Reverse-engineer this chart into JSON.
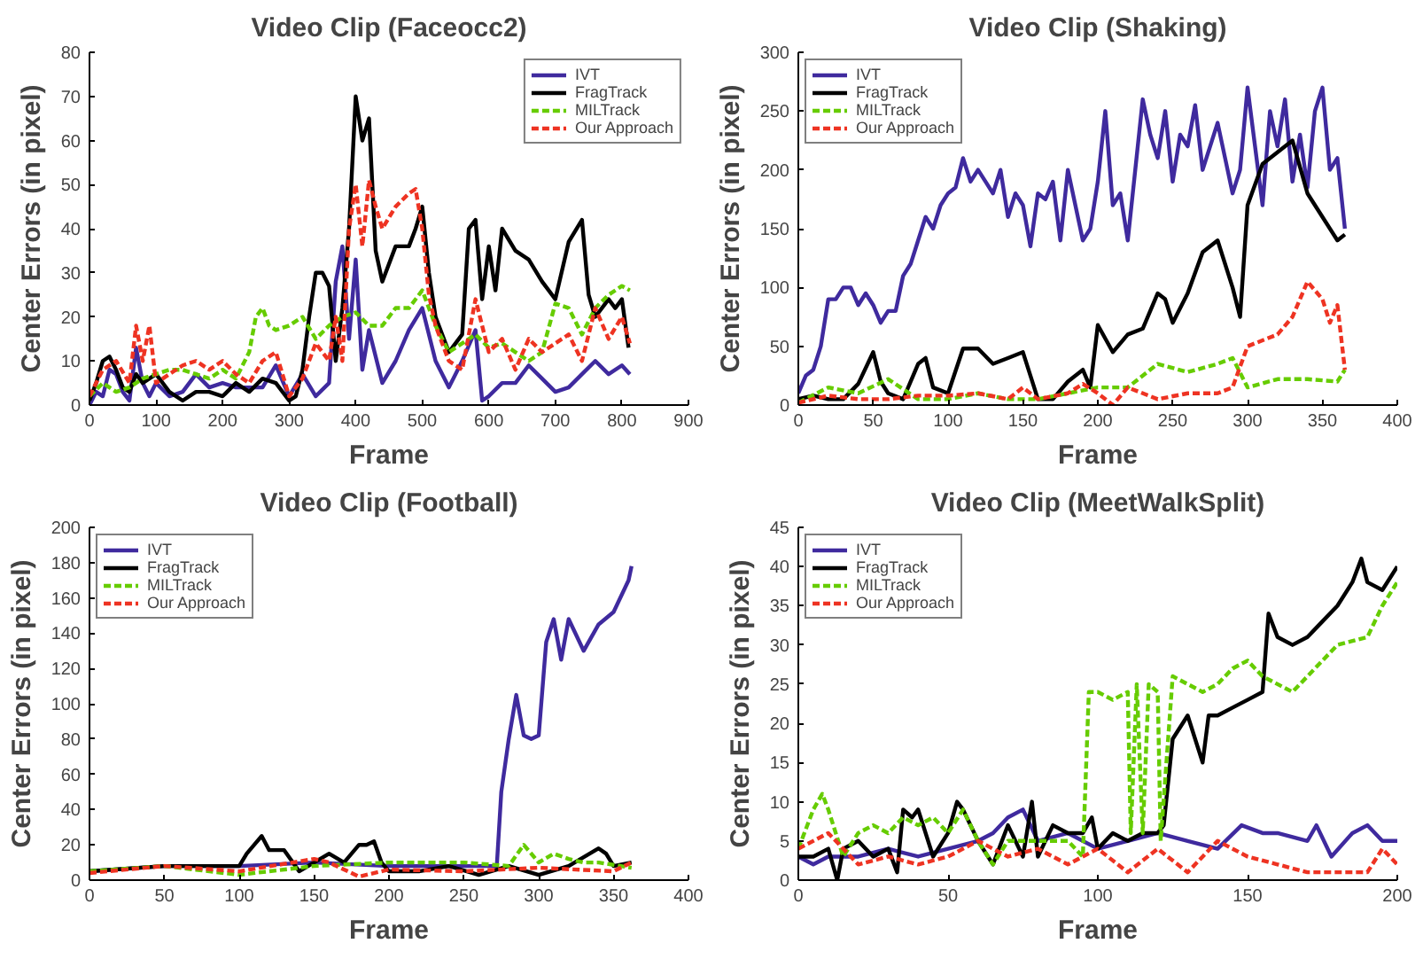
{
  "chart_data": [
    {
      "type": "line",
      "title": "Video Clip (Faceocc2)",
      "xlabel": "Frame",
      "ylabel": "Center Errors (in pixel)",
      "xlim": [
        0,
        900
      ],
      "xticks": [
        0,
        100,
        200,
        300,
        400,
        500,
        600,
        700,
        800,
        900
      ],
      "ylim": [
        0,
        80
      ],
      "yticks": [
        0,
        10,
        20,
        30,
        40,
        50,
        60,
        70,
        80
      ],
      "legend": "top right",
      "series": [
        {
          "name": "IVT",
          "color": "#3f2a9e",
          "line_style": "solid",
          "x": [
            0,
            10,
            20,
            30,
            40,
            50,
            60,
            70,
            80,
            90,
            100,
            120,
            140,
            160,
            180,
            200,
            220,
            240,
            260,
            280,
            300,
            320,
            340,
            360,
            370,
            380,
            390,
            400,
            410,
            420,
            440,
            460,
            480,
            500,
            520,
            540,
            560,
            580,
            590,
            600,
            620,
            640,
            660,
            680,
            700,
            720,
            740,
            760,
            780,
            800,
            812
          ],
          "values": [
            0,
            3,
            2,
            8,
            7,
            3,
            1,
            13,
            5,
            2,
            5,
            2,
            3,
            7,
            4,
            5,
            4,
            4,
            4,
            9,
            2,
            7,
            2,
            5,
            28,
            36,
            15,
            33,
            8,
            17,
            5,
            10,
            17,
            22,
            10,
            4,
            10,
            17,
            1,
            2,
            5,
            5,
            9,
            6,
            3,
            4,
            7,
            10,
            7,
            9,
            7
          ]
        },
        {
          "name": "FragTrack",
          "color": "#000000",
          "line_style": "solid",
          "x": [
            0,
            10,
            20,
            30,
            40,
            50,
            60,
            70,
            80,
            100,
            120,
            140,
            160,
            180,
            200,
            220,
            240,
            260,
            280,
            300,
            310,
            320,
            330,
            340,
            350,
            360,
            370,
            380,
            390,
            400,
            410,
            420,
            430,
            440,
            460,
            480,
            490,
            500,
            510,
            520,
            540,
            560,
            570,
            580,
            590,
            600,
            610,
            620,
            640,
            660,
            680,
            700,
            720,
            740,
            750,
            760,
            780,
            790,
            800,
            810
          ],
          "values": [
            1,
            5,
            10,
            11,
            8,
            4,
            3,
            7,
            5,
            7,
            3,
            1,
            3,
            3,
            2,
            5,
            3,
            6,
            5,
            1,
            2,
            8,
            20,
            30,
            30,
            27,
            10,
            22,
            40,
            70,
            60,
            65,
            35,
            28,
            36,
            36,
            40,
            45,
            30,
            20,
            12,
            16,
            40,
            42,
            24,
            36,
            26,
            40,
            35,
            33,
            28,
            24,
            37,
            42,
            25,
            20,
            24,
            22,
            24,
            13
          ]
        },
        {
          "name": "MILTrack",
          "color": "#66cc00",
          "line_style": "dashed",
          "x": [
            0,
            20,
            40,
            60,
            80,
            100,
            120,
            140,
            160,
            180,
            200,
            220,
            240,
            250,
            260,
            270,
            280,
            300,
            320,
            340,
            360,
            380,
            400,
            420,
            440,
            460,
            480,
            500,
            520,
            540,
            560,
            580,
            600,
            620,
            640,
            660,
            680,
            700,
            720,
            740,
            760,
            780,
            800,
            812
          ],
          "values": [
            2,
            5,
            3,
            4,
            6,
            7,
            8,
            8,
            7,
            6,
            8,
            6,
            12,
            20,
            22,
            18,
            17,
            18,
            20,
            15,
            18,
            20,
            21,
            18,
            18,
            22,
            22,
            26,
            18,
            12,
            14,
            16,
            13,
            14,
            12,
            10,
            12,
            23,
            22,
            16,
            22,
            25,
            27,
            26
          ]
        },
        {
          "name": "Our Approach",
          "color": "#ee3322",
          "line_style": "dashed",
          "x": [
            0,
            20,
            40,
            60,
            70,
            80,
            90,
            100,
            120,
            140,
            160,
            180,
            200,
            220,
            240,
            260,
            280,
            300,
            320,
            340,
            360,
            370,
            380,
            390,
            400,
            410,
            420,
            430,
            440,
            460,
            480,
            490,
            500,
            510,
            520,
            540,
            560,
            580,
            600,
            620,
            640,
            660,
            680,
            700,
            720,
            740,
            760,
            780,
            800,
            812
          ],
          "values": [
            2,
            8,
            10,
            5,
            18,
            10,
            18,
            5,
            7,
            9,
            10,
            8,
            10,
            7,
            5,
            10,
            12,
            2,
            6,
            14,
            10,
            20,
            10,
            40,
            50,
            36,
            51,
            45,
            40,
            45,
            48,
            49,
            40,
            25,
            18,
            10,
            8,
            24,
            12,
            15,
            8,
            15,
            12,
            14,
            16,
            10,
            22,
            15,
            20,
            14
          ]
        }
      ]
    },
    {
      "type": "line",
      "title": "Video Clip (Shaking)",
      "xlabel": "Frame",
      "ylabel": "Center Errors (in pixel)",
      "xlim": [
        0,
        400
      ],
      "xticks": [
        0,
        50,
        100,
        150,
        200,
        250,
        300,
        350,
        400
      ],
      "ylim": [
        0,
        300
      ],
      "yticks": [
        0,
        50,
        100,
        150,
        200,
        250,
        300
      ],
      "legend": "top left",
      "series": [
        {
          "name": "IVT",
          "color": "#3f2a9e",
          "line_style": "solid",
          "x": [
            0,
            5,
            10,
            15,
            20,
            25,
            30,
            35,
            40,
            45,
            50,
            55,
            60,
            65,
            70,
            75,
            80,
            85,
            90,
            95,
            100,
            105,
            110,
            115,
            120,
            125,
            130,
            135,
            140,
            145,
            150,
            155,
            160,
            165,
            170,
            175,
            180,
            185,
            190,
            195,
            200,
            205,
            210,
            215,
            220,
            225,
            230,
            235,
            240,
            245,
            250,
            255,
            260,
            265,
            270,
            275,
            280,
            285,
            290,
            295,
            300,
            305,
            310,
            315,
            320,
            325,
            330,
            335,
            340,
            345,
            350,
            355,
            360,
            365
          ],
          "values": [
            10,
            25,
            30,
            50,
            90,
            90,
            100,
            100,
            85,
            95,
            85,
            70,
            80,
            80,
            110,
            120,
            140,
            160,
            150,
            170,
            180,
            185,
            210,
            190,
            200,
            190,
            180,
            200,
            160,
            180,
            170,
            135,
            180,
            175,
            190,
            140,
            200,
            170,
            140,
            150,
            190,
            250,
            170,
            180,
            140,
            200,
            260,
            230,
            210,
            250,
            190,
            230,
            220,
            255,
            200,
            220,
            240,
            210,
            180,
            200,
            270,
            220,
            170,
            250,
            220,
            260,
            190,
            230,
            185,
            250,
            270,
            200,
            210,
            150
          ]
        },
        {
          "name": "FragTrack",
          "color": "#000000",
          "line_style": "solid",
          "x": [
            0,
            10,
            20,
            30,
            40,
            50,
            55,
            60,
            70,
            80,
            85,
            90,
            100,
            110,
            120,
            130,
            140,
            150,
            155,
            160,
            170,
            180,
            190,
            195,
            200,
            210,
            220,
            230,
            240,
            245,
            250,
            260,
            270,
            280,
            290,
            295,
            300,
            310,
            320,
            330,
            340,
            350,
            360,
            365
          ],
          "values": [
            5,
            8,
            5,
            5,
            18,
            45,
            20,
            10,
            5,
            35,
            40,
            15,
            10,
            48,
            48,
            35,
            40,
            45,
            25,
            5,
            5,
            20,
            30,
            15,
            68,
            45,
            60,
            65,
            95,
            90,
            70,
            95,
            130,
            140,
            100,
            75,
            170,
            205,
            215,
            225,
            180,
            160,
            140,
            145
          ]
        },
        {
          "name": "MILTrack",
          "color": "#66cc00",
          "line_style": "dashed",
          "x": [
            0,
            20,
            40,
            60,
            80,
            100,
            120,
            140,
            160,
            180,
            200,
            220,
            240,
            260,
            280,
            290,
            300,
            320,
            340,
            360,
            365
          ],
          "values": [
            2,
            15,
            10,
            22,
            5,
            5,
            10,
            5,
            5,
            10,
            15,
            15,
            35,
            28,
            35,
            40,
            15,
            22,
            22,
            20,
            30
          ]
        },
        {
          "name": "Our Approach",
          "color": "#ee3322",
          "line_style": "dashed",
          "x": [
            0,
            20,
            40,
            60,
            80,
            100,
            120,
            140,
            150,
            160,
            180,
            190,
            200,
            210,
            220,
            240,
            260,
            280,
            290,
            300,
            310,
            320,
            330,
            340,
            350,
            355,
            360,
            365
          ],
          "values": [
            2,
            8,
            5,
            5,
            8,
            8,
            10,
            5,
            15,
            5,
            10,
            18,
            10,
            0,
            15,
            5,
            10,
            10,
            15,
            50,
            55,
            60,
            75,
            105,
            90,
            70,
            85,
            30
          ]
        }
      ]
    },
    {
      "type": "line",
      "title": "Video Clip (Football)",
      "xlabel": "Frame",
      "ylabel": "Center Errors (in pixel)",
      "xlim": [
        0,
        400
      ],
      "xticks": [
        0,
        50,
        100,
        150,
        200,
        250,
        300,
        350,
        400
      ],
      "ylim": [
        0,
        200
      ],
      "yticks": [
        0,
        20,
        40,
        60,
        80,
        100,
        120,
        140,
        160,
        180,
        200
      ],
      "legend": "top left",
      "series": [
        {
          "name": "IVT",
          "color": "#3f2a9e",
          "line_style": "solid",
          "x": [
            0,
            50,
            100,
            150,
            200,
            250,
            270,
            272,
            275,
            280,
            285,
            290,
            295,
            300,
            305,
            310,
            315,
            320,
            330,
            340,
            350,
            360,
            362
          ],
          "values": [
            5,
            8,
            8,
            10,
            8,
            8,
            8,
            8,
            50,
            80,
            105,
            82,
            80,
            82,
            135,
            148,
            125,
            148,
            130,
            145,
            152,
            170,
            178
          ]
        },
        {
          "name": "FragTrack",
          "color": "#000000",
          "line_style": "solid",
          "x": [
            0,
            50,
            100,
            105,
            110,
            115,
            120,
            130,
            140,
            150,
            160,
            170,
            180,
            185,
            190,
            195,
            200,
            220,
            240,
            260,
            280,
            300,
            320,
            340,
            345,
            350,
            362
          ],
          "values": [
            5,
            8,
            8,
            15,
            20,
            25,
            17,
            17,
            5,
            10,
            15,
            10,
            20,
            20,
            22,
            10,
            5,
            5,
            8,
            3,
            8,
            3,
            8,
            18,
            15,
            8,
            10
          ]
        },
        {
          "name": "MILTrack",
          "color": "#66cc00",
          "line_style": "dashed",
          "x": [
            0,
            50,
            100,
            150,
            200,
            250,
            280,
            290,
            300,
            310,
            320,
            330,
            340,
            362
          ],
          "values": [
            5,
            8,
            3,
            8,
            10,
            10,
            8,
            20,
            10,
            15,
            12,
            10,
            10,
            7
          ]
        },
        {
          "name": "Our Approach",
          "color": "#ee3322",
          "line_style": "dashed",
          "x": [
            0,
            50,
            100,
            150,
            160,
            180,
            200,
            250,
            300,
            350,
            362
          ],
          "values": [
            4,
            8,
            5,
            12,
            10,
            2,
            6,
            5,
            7,
            5,
            10
          ]
        }
      ]
    },
    {
      "type": "line",
      "title": "Video Clip (MeetWalkSplit)",
      "xlabel": "Frame",
      "ylabel": "Center Errors (in pixel)",
      "xlim": [
        0,
        200
      ],
      "xticks": [
        0,
        50,
        100,
        150,
        200
      ],
      "ylim": [
        0,
        45
      ],
      "yticks": [
        0,
        5,
        10,
        15,
        20,
        25,
        30,
        35,
        40,
        45
      ],
      "legend": "top left",
      "series": [
        {
          "name": "IVT",
          "color": "#3f2a9e",
          "line_style": "solid",
          "x": [
            0,
            5,
            10,
            20,
            30,
            40,
            50,
            60,
            65,
            70,
            75,
            80,
            90,
            100,
            110,
            120,
            130,
            140,
            148,
            155,
            160,
            170,
            173,
            178,
            185,
            190,
            195,
            200
          ],
          "values": [
            3,
            2,
            3,
            3,
            4,
            3,
            4,
            5,
            6,
            8,
            9,
            5,
            6,
            4,
            5,
            6,
            5,
            4,
            7,
            6,
            6,
            5,
            7,
            3,
            6,
            7,
            5,
            5
          ]
        },
        {
          "name": "FragTrack",
          "color": "#000000",
          "line_style": "solid",
          "x": [
            0,
            5,
            10,
            13,
            15,
            20,
            25,
            30,
            33,
            35,
            38,
            40,
            45,
            50,
            53,
            55,
            60,
            65,
            70,
            75,
            78,
            80,
            85,
            90,
            95,
            98,
            100,
            105,
            110,
            115,
            120,
            122,
            125,
            130,
            135,
            137,
            140,
            145,
            150,
            155,
            157,
            160,
            165,
            170,
            175,
            180,
            185,
            188,
            190,
            195,
            200
          ],
          "values": [
            3,
            3,
            4,
            0,
            4,
            5,
            3,
            4,
            1,
            9,
            8,
            9,
            3,
            6,
            10,
            9,
            5,
            2,
            7,
            3,
            10,
            3,
            7,
            6,
            6,
            8,
            4,
            6,
            5,
            6,
            6,
            7,
            18,
            21,
            15,
            21,
            21,
            22,
            23,
            24,
            34,
            31,
            30,
            31,
            33,
            35,
            38,
            41,
            38,
            37,
            40
          ]
        },
        {
          "name": "MILTrack",
          "color": "#66cc00",
          "line_style": "dashed",
          "x": [
            0,
            5,
            8,
            10,
            15,
            20,
            25,
            30,
            35,
            40,
            45,
            50,
            55,
            60,
            65,
            70,
            80,
            90,
            95,
            97,
            100,
            105,
            110,
            111,
            113,
            115,
            117,
            120,
            121,
            125,
            130,
            135,
            140,
            145,
            150,
            155,
            160,
            165,
            170,
            175,
            180,
            190,
            195,
            200
          ],
          "values": [
            4,
            9,
            11,
            9,
            3,
            6,
            7,
            6,
            8,
            7,
            8,
            6,
            9,
            5,
            2,
            5,
            5,
            5,
            3,
            24,
            24,
            23,
            24,
            6,
            25,
            6,
            25,
            24,
            5,
            26,
            25,
            24,
            25,
            27,
            28,
            26,
            25,
            24,
            26,
            28,
            30,
            31,
            35,
            38
          ]
        },
        {
          "name": "Our Approach",
          "color": "#ee3322",
          "line_style": "dashed",
          "x": [
            0,
            10,
            20,
            30,
            40,
            50,
            60,
            70,
            80,
            90,
            100,
            110,
            120,
            130,
            140,
            150,
            160,
            170,
            180,
            190,
            195,
            200
          ],
          "values": [
            4,
            6,
            2,
            3,
            2,
            3,
            5,
            3,
            4,
            2,
            4,
            1,
            4,
            1,
            5,
            3,
            2,
            1,
            1,
            1,
            4,
            2
          ]
        }
      ]
    }
  ]
}
